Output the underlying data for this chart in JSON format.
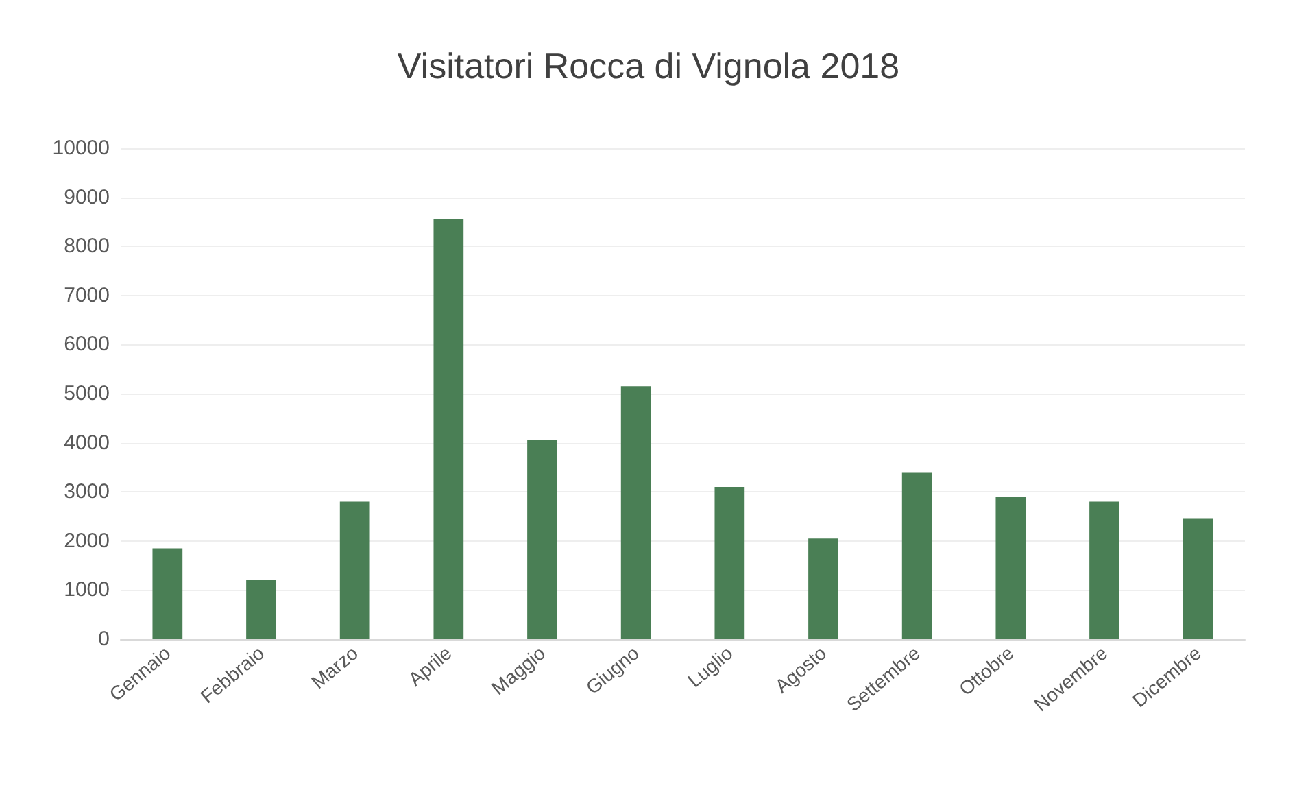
{
  "chart_data": {
    "type": "bar",
    "title": "Visitatori Rocca di Vignola 2018",
    "categories": [
      "Gennaio",
      "Febbraio",
      "Marzo",
      "Aprile",
      "Maggio",
      "Giugno",
      "Luglio",
      "Agosto",
      "Settembre",
      "Ottobre",
      "Novembre",
      "Dicembre"
    ],
    "values": [
      1850,
      1200,
      2800,
      8550,
      4050,
      5150,
      3100,
      2050,
      3400,
      2900,
      2800,
      2450
    ],
    "color": "#4a7f55",
    "ylim": [
      0,
      10000
    ],
    "yticks": [
      0,
      1000,
      2000,
      3000,
      4000,
      5000,
      6000,
      7000,
      8000,
      9000,
      10000
    ],
    "grid": "y"
  }
}
